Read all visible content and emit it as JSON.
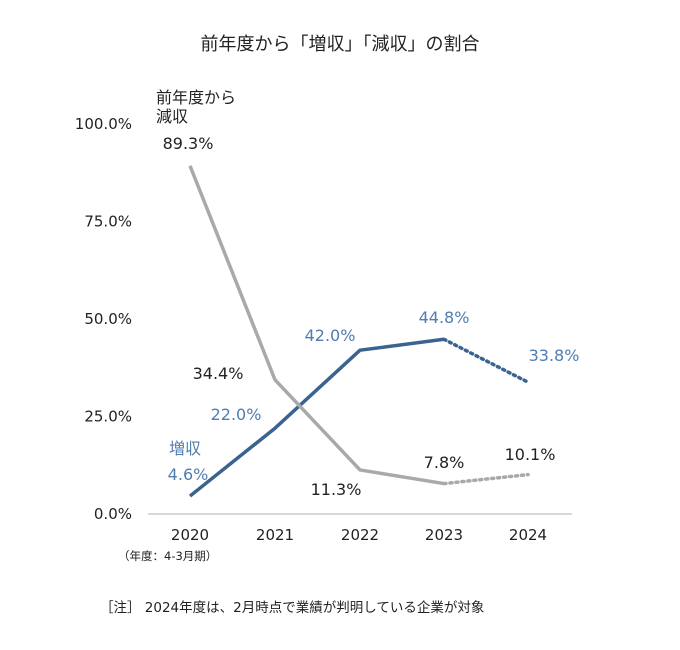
{
  "chart_data": {
    "type": "line",
    "title": "前年度から「増収」「減収」の割合",
    "categories": [
      "2020",
      "2021",
      "2022",
      "2023",
      "2024"
    ],
    "ylim": [
      0,
      100
    ],
    "yticks": [
      "100.0%",
      "75.0%",
      "50.0%",
      "25.0%",
      "0.0%"
    ],
    "series": [
      {
        "name": "増収",
        "color": "#3a6390",
        "values": [
          4.6,
          22.0,
          42.0,
          44.8,
          33.8
        ],
        "labels": [
          "4.6%",
          "22.0%",
          "42.0%",
          "44.8%",
          "33.8%"
        ],
        "dotted_from_index": 3
      },
      {
        "name_lines": [
          "前年度から",
          "減収"
        ],
        "color": "#a9a9a9",
        "values": [
          89.3,
          34.4,
          11.3,
          7.8,
          10.1
        ],
        "labels": [
          "89.3%",
          "34.4%",
          "11.3%",
          "7.8%",
          "10.1%"
        ],
        "dotted_from_index": 3
      }
    ],
    "xnote": "（年度：4‐3月期）",
    "footnote": "［注］ 2024年度は、2月時点で業績が判明している企業が対象",
    "grid": false
  }
}
